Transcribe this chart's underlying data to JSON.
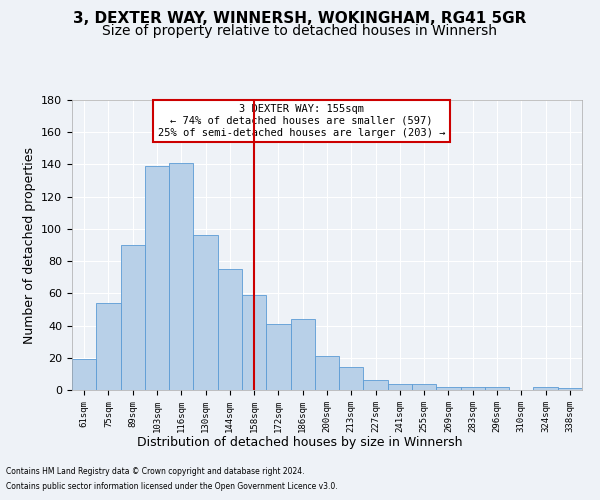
{
  "title1": "3, DEXTER WAY, WINNERSH, WOKINGHAM, RG41 5GR",
  "title2": "Size of property relative to detached houses in Winnersh",
  "xlabel": "Distribution of detached houses by size in Winnersh",
  "ylabel": "Number of detached properties",
  "footnote1": "Contains HM Land Registry data © Crown copyright and database right 2024.",
  "footnote2": "Contains public sector information licensed under the Open Government Licence v3.0.",
  "categories": [
    "61sqm",
    "75sqm",
    "89sqm",
    "103sqm",
    "116sqm",
    "130sqm",
    "144sqm",
    "158sqm",
    "172sqm",
    "186sqm",
    "200sqm",
    "213sqm",
    "227sqm",
    "241sqm",
    "255sqm",
    "269sqm",
    "283sqm",
    "296sqm",
    "310sqm",
    "324sqm",
    "338sqm"
  ],
  "values": [
    19,
    54,
    90,
    139,
    141,
    96,
    75,
    59,
    41,
    44,
    21,
    14,
    6,
    4,
    4,
    2,
    2,
    2,
    0,
    2,
    1
  ],
  "bar_color": "#b8d0e8",
  "bar_edge_color": "#5b9bd5",
  "vline_color": "#cc0000",
  "vline_index": 7.0,
  "annotation_text": "3 DEXTER WAY: 155sqm\n← 74% of detached houses are smaller (597)\n25% of semi-detached houses are larger (203) →",
  "annotation_box_color": "#ffffff",
  "annotation_box_edge_color": "#cc0000",
  "ylim": [
    0,
    180
  ],
  "yticks": [
    0,
    20,
    40,
    60,
    80,
    100,
    120,
    140,
    160,
    180
  ],
  "bg_color": "#eef2f7",
  "grid_color": "#ffffff",
  "title1_fontsize": 11,
  "title2_fontsize": 10,
  "xlabel_fontsize": 9,
  "ylabel_fontsize": 9
}
